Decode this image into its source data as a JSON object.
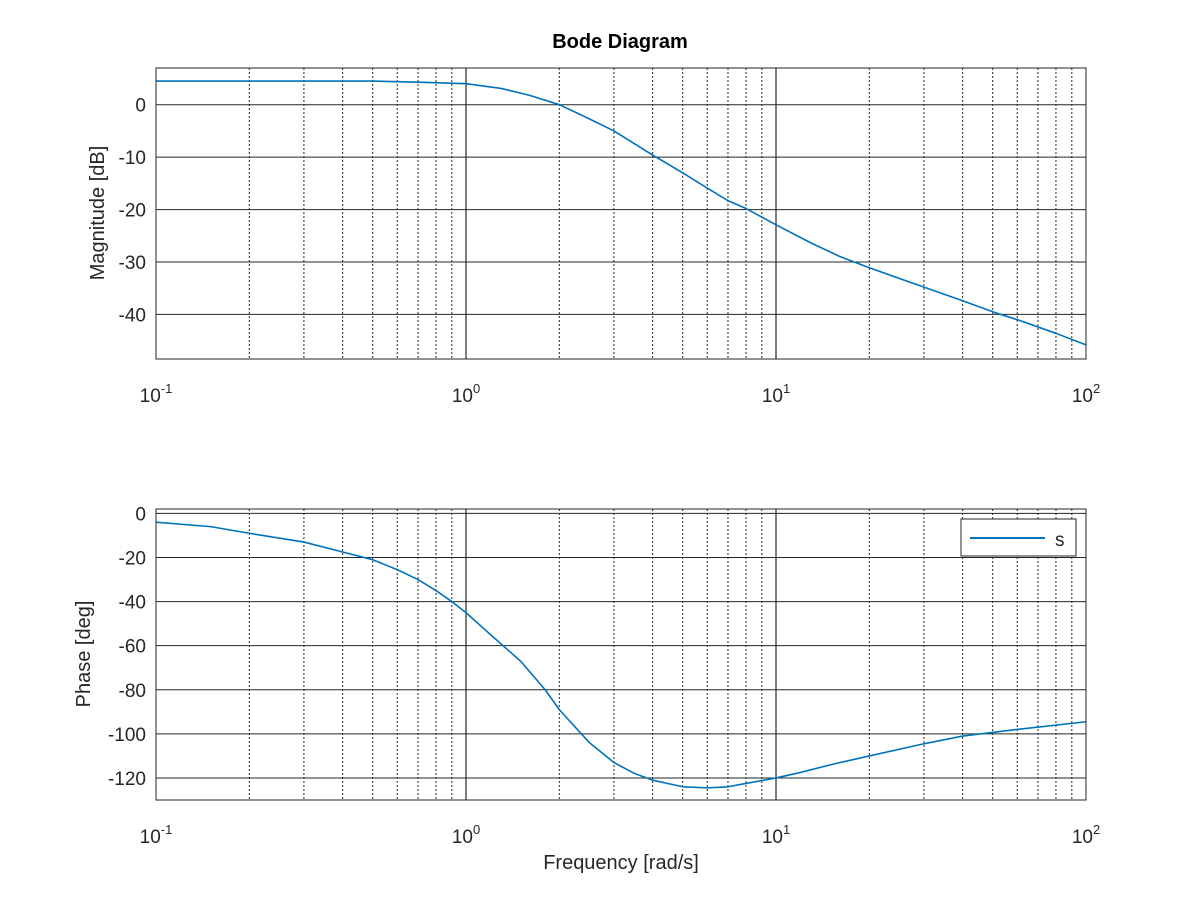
{
  "figure": {
    "title": "Bode Diagram"
  },
  "chart_data": [
    {
      "type": "line",
      "panel": "magnitude",
      "title": "Bode Diagram",
      "xlabel": "",
      "ylabel": "Magnitude [dB]",
      "xscale": "log",
      "xlim": [
        0.1,
        100
      ],
      "ylim": [
        -48.5,
        7
      ],
      "x_ticks": [
        {
          "base": "10",
          "exp": "-1",
          "value": 0.1
        },
        {
          "base": "10",
          "exp": "0",
          "value": 1
        },
        {
          "base": "10",
          "exp": "1",
          "value": 10
        },
        {
          "base": "10",
          "exp": "2",
          "value": 100
        }
      ],
      "y_ticks": [
        {
          "label": "0",
          "value": 0
        },
        {
          "label": "-10",
          "value": -10
        },
        {
          "label": "-20",
          "value": -20
        },
        {
          "label": "-30",
          "value": -30
        },
        {
          "label": "-40",
          "value": -40
        }
      ],
      "grid": true,
      "color": "#0072bd",
      "series": [
        {
          "x": [
            0.1,
            0.2,
            0.3,
            0.5,
            0.7,
            1.0,
            1.3,
            1.6,
            2.0,
            2.5,
            3.0,
            4.0,
            5.0,
            6.0,
            7.0,
            8.0,
            10,
            13,
            16,
            20,
            30,
            40,
            50,
            60,
            80,
            100
          ],
          "y": [
            4.5,
            4.5,
            4.5,
            4.5,
            4.3,
            4.0,
            3.1,
            1.8,
            0.0,
            -2.7,
            -5.0,
            -9.6,
            -13.0,
            -15.9,
            -18.3,
            -19.8,
            -22.9,
            -26.4,
            -28.9,
            -31.1,
            -34.8,
            -37.4,
            -39.5,
            -41.0,
            -43.6,
            -45.8
          ]
        }
      ]
    },
    {
      "type": "line",
      "panel": "phase",
      "title": "",
      "xlabel": "Frequency [rad/s]",
      "ylabel": "Phase [deg]",
      "xscale": "log",
      "xlim": [
        0.1,
        100
      ],
      "ylim": [
        -130,
        2
      ],
      "x_ticks": [
        {
          "base": "10",
          "exp": "-1",
          "value": 0.1
        },
        {
          "base": "10",
          "exp": "0",
          "value": 1
        },
        {
          "base": "10",
          "exp": "1",
          "value": 10
        },
        {
          "base": "10",
          "exp": "2",
          "value": 100
        }
      ],
      "y_ticks": [
        {
          "label": "0",
          "value": 0
        },
        {
          "label": "-20",
          "value": -20
        },
        {
          "label": "-40",
          "value": -40
        },
        {
          "label": "-60",
          "value": -60
        },
        {
          "label": "-80",
          "value": -80
        },
        {
          "label": "-100",
          "value": -100
        },
        {
          "label": "-120",
          "value": -120
        }
      ],
      "grid": true,
      "legend": {
        "position": "top-right",
        "entries": [
          "s"
        ]
      },
      "color": "#0072bd",
      "series": [
        {
          "name": "s",
          "x": [
            0.1,
            0.15,
            0.2,
            0.3,
            0.4,
            0.5,
            0.6,
            0.7,
            0.8,
            0.9,
            1.0,
            1.2,
            1.5,
            1.8,
            2.0,
            2.5,
            3.0,
            3.5,
            4.0,
            5.0,
            6.0,
            7.0,
            8.0,
            10,
            12,
            15,
            20,
            30,
            40,
            60,
            100
          ],
          "y": [
            -4,
            -6,
            -9,
            -13,
            -17.5,
            -21,
            -25.5,
            -30,
            -35,
            -40,
            -45,
            -55,
            -67,
            -80,
            -89,
            -104,
            -113,
            -118,
            -121,
            -124,
            -124.5,
            -124,
            -122.5,
            -120,
            -117.5,
            -114,
            -110,
            -104.5,
            -101,
            -98,
            -94.5
          ]
        }
      ]
    }
  ]
}
